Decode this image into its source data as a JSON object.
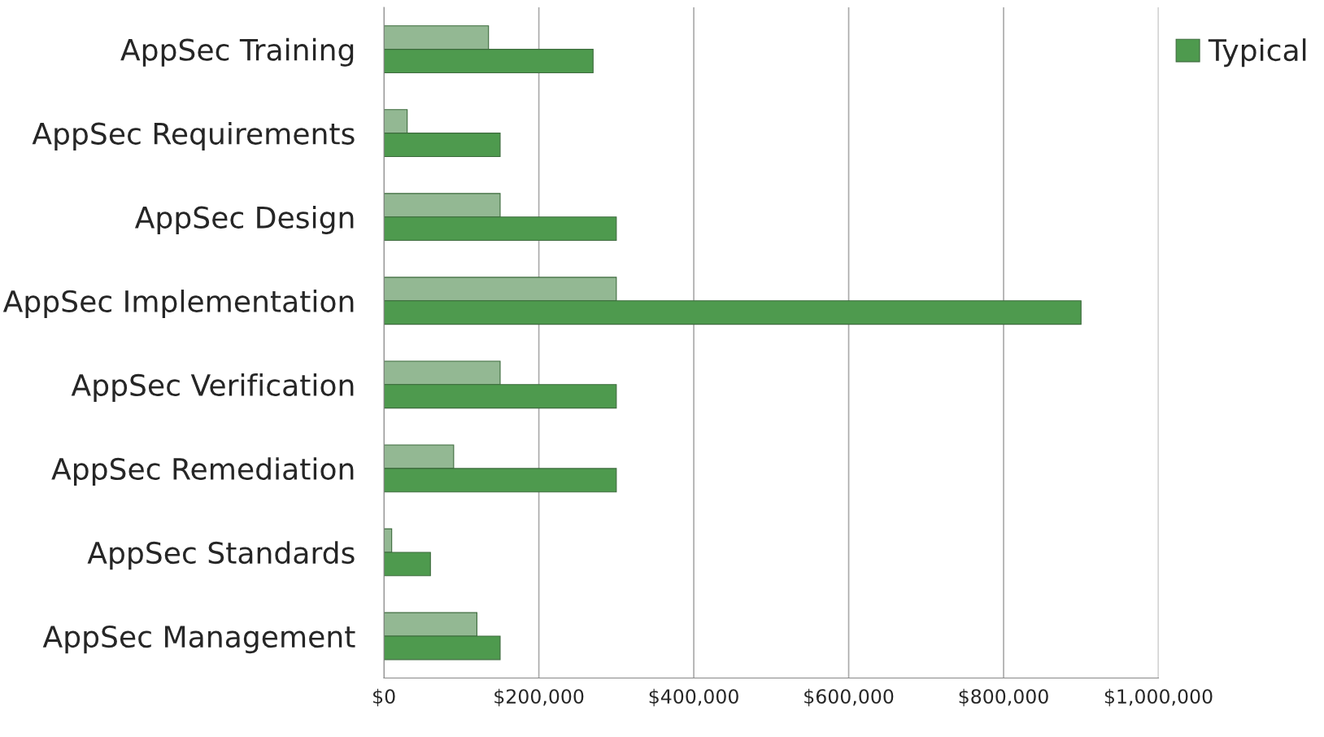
{
  "chart_data": {
    "type": "bar",
    "orientation": "horizontal",
    "categories": [
      "AppSec Training",
      "AppSec Requirements",
      "AppSec Design",
      "AppSec Implementation",
      "AppSec Verification",
      "AppSec Remediation",
      "AppSec Standards",
      "AppSec Management"
    ],
    "series": [
      {
        "color": "#93b893",
        "values": [
          135000,
          30000,
          150000,
          300000,
          150000,
          90000,
          10000,
          120000
        ]
      },
      {
        "name": "Typical",
        "color": "#4e9a4e",
        "values": [
          270000,
          150000,
          300000,
          900000,
          300000,
          300000,
          60000,
          150000
        ]
      }
    ],
    "xlim": [
      0,
      1000000
    ],
    "xticks": [
      {
        "value": 0,
        "label": "$0"
      },
      {
        "value": 200000,
        "label": "$200,000"
      },
      {
        "value": 400000,
        "label": "$400,000"
      },
      {
        "value": 600000,
        "label": "$600,000"
      },
      {
        "value": 800000,
        "label": "$800,000"
      },
      {
        "value": 1000000,
        "label": "$1,000,000"
      }
    ],
    "grid": "x",
    "legend": "top right"
  }
}
